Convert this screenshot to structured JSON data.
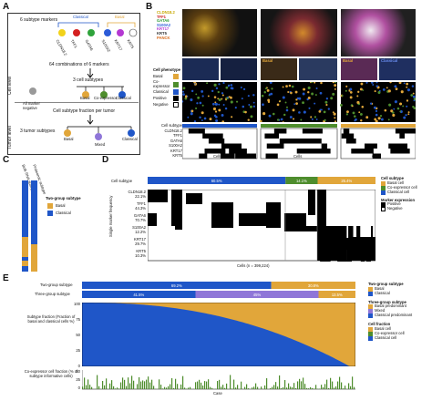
{
  "panels": {
    "a": "A",
    "b": "B",
    "c": "C",
    "d": "D",
    "e": "E"
  },
  "colors": {
    "classical": "#1f56c8",
    "basal": "#e1a63a",
    "coexp": "#4e8d2d",
    "mixed": "#8f76d8",
    "classical_pred": "#1f56c8",
    "basal_pred": "#e1a63a",
    "neg": "#bdbdbd"
  },
  "panel_a": {
    "cell_level": "Cell level",
    "tumor_level": "Tumor level",
    "markers_label": "6 subtype markers",
    "classical": "Classical",
    "basal": "Basal",
    "markers": [
      "CLDN18.2",
      "TFF1",
      "GATA6",
      "S100A2",
      "KRT17",
      "KRT5"
    ],
    "combos": "64 combinations of 6 markers",
    "three_subtypes": "3 cell subtypes",
    "all_neg": "All marker negative",
    "cell_types": [
      "Basal",
      "Co-expressor",
      "Classical"
    ],
    "fraction_per_tumor": "Cell subtype fraction per tumor",
    "tumor_subtypes": "3 tumor subtypes",
    "tumor_types": [
      "Basal",
      "Mixed",
      "Classical"
    ]
  },
  "panel_b": {
    "marker_labels": [
      "CLDN18.2",
      "TFF1",
      "GATA6",
      "S100A2",
      "KRT17",
      "KRT5",
      "PANCK"
    ],
    "legend_title": "Cell phenotype",
    "legend_items": [
      "Basal",
      "Co-expressor",
      "Classical",
      "Positive",
      "Negative"
    ],
    "tile_labels": [
      "Basal",
      "Co-expressor",
      "Classical"
    ],
    "heat_rows": [
      "Cell subtype",
      "CLDN18.2",
      "TFF1",
      "GATA6",
      "S100A2",
      "KRT17",
      "KRT5"
    ],
    "side_label": "Subtype marker",
    "cells": "Cells"
  },
  "panel_c": {
    "col1": "Bulk RNA subtype",
    "col2": "Proteomic subtype",
    "legend_title": "Two-group subtype",
    "legend_items": [
      "Basal",
      "Classical"
    ]
  },
  "panel_d": {
    "row_label": "Cell subtype",
    "bar_segments": [
      {
        "label": "60.5%",
        "value": 60.5,
        "color": "classical"
      },
      {
        "label": "14.1%",
        "value": 14.1,
        "color": "coexp"
      },
      {
        "label": "25.4%",
        "value": 25.4,
        "color": "basal"
      }
    ],
    "markers": [
      {
        "name": "CLDN18.2",
        "pct": "22.1%"
      },
      {
        "name": "TFF1",
        "pct": "44.3%"
      },
      {
        "name": "GATA6",
        "pct": "70.7%"
      },
      {
        "name": "S100A2",
        "pct": "12.2%"
      },
      {
        "name": "KRT17",
        "pct": "29.7%"
      },
      {
        "name": "KRT5",
        "pct": "10.3%"
      }
    ],
    "y_axis": "Single marker frequency",
    "x_axis": "Cells (n = 399,224)",
    "legend1_title": "Cell subtype",
    "legend1_items": [
      "Basal cell",
      "Co-expressor cell",
      "Classical cell"
    ],
    "legend2_title": "Marker expression",
    "legend2_items": [
      "Positive",
      "Negative"
    ]
  },
  "panel_e": {
    "row1_label": "Two-group subtype",
    "row1_segments": [
      {
        "label": "69.2%",
        "value": 69.2,
        "color": "classical"
      },
      {
        "label": "30.8%",
        "value": 30.8,
        "color": "basal"
      }
    ],
    "row2_label": "Three-group subtype",
    "row2_segments": [
      {
        "label": "41.5%",
        "value": 41.5,
        "color": "classical"
      },
      {
        "label": "45%",
        "value": 45,
        "color": "mixed"
      },
      {
        "label": "13.5%",
        "value": 13.5,
        "color": "basal"
      }
    ],
    "y1_label": "Subtype fraction (Fraction of basal and classical cells %)",
    "y1_ticks": [
      "100",
      "75",
      "50",
      "25",
      "0"
    ],
    "y2_label": "Co-expressor cell fraction (% of subtype informative cells)",
    "y2_ticks": [
      "50",
      "25",
      "0"
    ],
    "x_label": "Case",
    "legend1_title": "Two-group subtype",
    "legend1_items": [
      "Basal",
      "Classical"
    ],
    "legend2_title": "Three-group subtype",
    "legend2_items": [
      "Basal predominant",
      "Mixed",
      "Classical predominant"
    ],
    "legend3_title": "Cell fraction",
    "legend3_items": [
      "Basal cell",
      "Co-expressor cell",
      "Classical cell"
    ]
  }
}
